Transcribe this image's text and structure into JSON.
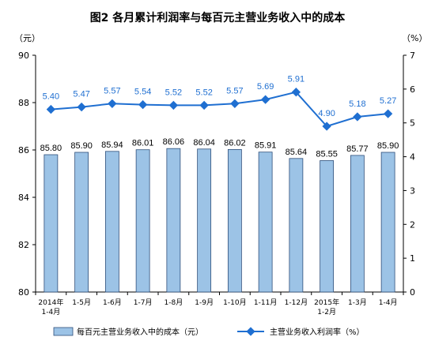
{
  "chart_data": {
    "type": "bar+line",
    "title": "图2  各月累计利润率与每百元主营业务收入中的成本",
    "left_axis_unit": "（元）",
    "right_axis_unit": "（%）",
    "categories": [
      [
        "2014年",
        "1-4月"
      ],
      [
        "1-5月"
      ],
      [
        "1-6月"
      ],
      [
        "1-7月"
      ],
      [
        "1-8月"
      ],
      [
        "1-9月"
      ],
      [
        "1-10月"
      ],
      [
        "1-11月"
      ],
      [
        "1-12月"
      ],
      [
        "2015年",
        "1-2月"
      ],
      [
        "1-3月"
      ],
      [
        "1-4月"
      ]
    ],
    "series": [
      {
        "name": "每百元主营业务收入中的成本（元）",
        "type": "bar",
        "axis": "left",
        "color": "#9cc3e6",
        "values": [
          85.8,
          85.9,
          85.94,
          86.01,
          86.06,
          86.04,
          86.02,
          85.91,
          85.64,
          85.55,
          85.77,
          85.9
        ],
        "labels": [
          "85.80",
          "85.90",
          "85.94",
          "86.01",
          "86.06",
          "86.04",
          "86.02",
          "85.91",
          "85.64",
          "85.55",
          "85.77",
          "85.90"
        ]
      },
      {
        "name": "主营业务收入利润率（%）",
        "type": "line",
        "axis": "right",
        "color": "#1f6fd1",
        "values": [
          5.4,
          5.47,
          5.57,
          5.54,
          5.52,
          5.52,
          5.57,
          5.69,
          5.91,
          4.9,
          5.18,
          5.27
        ],
        "labels": [
          "5.40",
          "5.47",
          "5.57",
          "5.54",
          "5.52",
          "5.52",
          "5.57",
          "5.69",
          "5.91",
          "4.90",
          "5.18",
          "5.27"
        ]
      }
    ],
    "ylim_left": [
      80,
      90
    ],
    "yticks_left": [
      "80",
      "82",
      "84",
      "86",
      "88",
      "90"
    ],
    "ylim_right": [
      0,
      7
    ],
    "yticks_right": [
      "0",
      "1",
      "2",
      "3",
      "4",
      "5",
      "6",
      "7"
    ],
    "grid": false,
    "legend_position": "bottom"
  }
}
